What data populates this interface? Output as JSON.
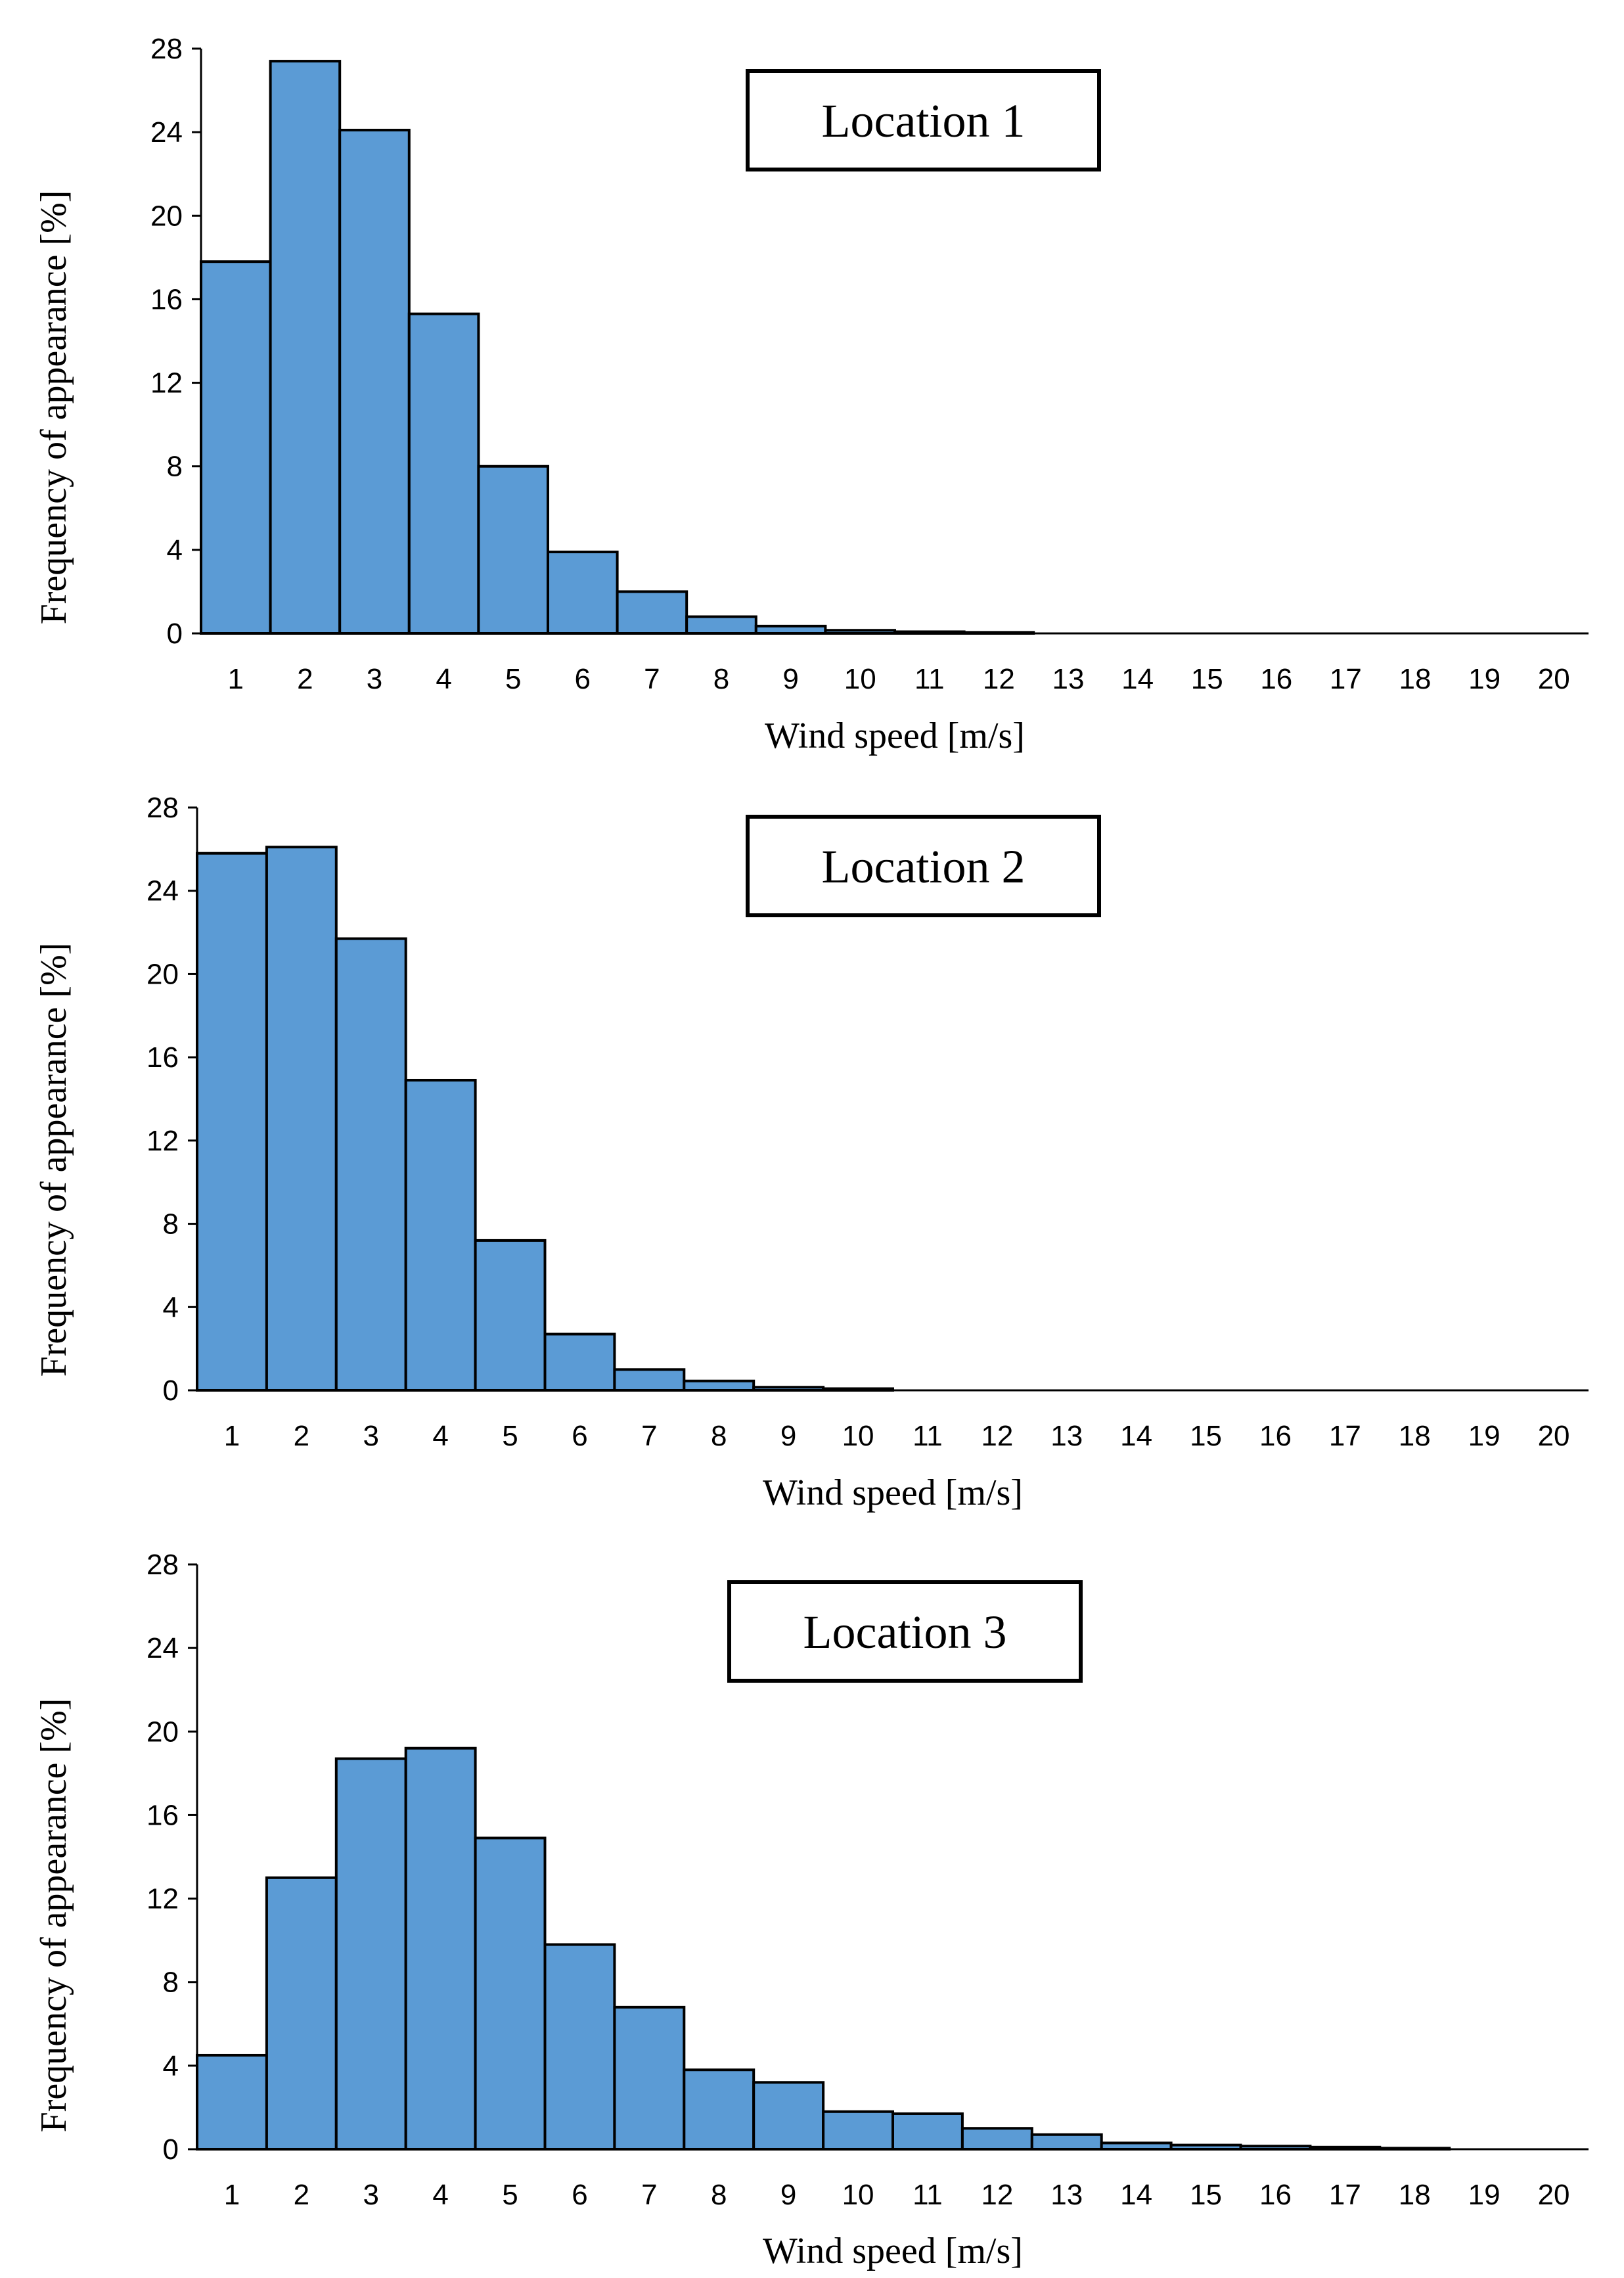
{
  "chart_data": [
    {
      "type": "bar",
      "title": "Location 1",
      "xlabel": "Wind speed [m/s]",
      "ylabel": "Frequency of appearance [%]",
      "ylim": [
        0,
        28
      ],
      "yticks": [
        "0",
        "4",
        "8",
        "12",
        "16",
        "20",
        "24",
        "28"
      ],
      "categories": [
        "1",
        "2",
        "3",
        "4",
        "5",
        "6",
        "7",
        "8",
        "9",
        "10",
        "11",
        "12",
        "13",
        "14",
        "15",
        "16",
        "17",
        "18",
        "19",
        "20"
      ],
      "values": [
        17.8,
        27.4,
        24.1,
        15.3,
        8.0,
        3.9,
        2.0,
        0.8,
        0.35,
        0.15,
        0.08,
        0.05,
        0,
        0,
        0,
        0,
        0,
        0,
        0,
        0
      ]
    },
    {
      "type": "bar",
      "title": "Location 2",
      "xlabel": "Wind speed [m/s]",
      "ylabel": "Frequency of appearance [%]",
      "ylim": [
        0,
        28
      ],
      "yticks": [
        "0",
        "4",
        "8",
        "12",
        "16",
        "20",
        "24",
        "28"
      ],
      "categories": [
        "1",
        "2",
        "3",
        "4",
        "5",
        "6",
        "7",
        "8",
        "9",
        "10",
        "11",
        "12",
        "13",
        "14",
        "15",
        "16",
        "17",
        "18",
        "19",
        "20"
      ],
      "values": [
        25.8,
        26.1,
        21.7,
        14.9,
        7.2,
        2.7,
        1.0,
        0.45,
        0.15,
        0.08,
        0,
        0,
        0,
        0,
        0,
        0,
        0,
        0,
        0,
        0
      ]
    },
    {
      "type": "bar",
      "title": "Location 3",
      "xlabel": "Wind speed [m/s]",
      "ylabel": "Frequency of appearance [%]",
      "ylim": [
        0,
        28
      ],
      "yticks": [
        "0",
        "4",
        "8",
        "12",
        "16",
        "20",
        "24",
        "28"
      ],
      "categories": [
        "1",
        "2",
        "3",
        "4",
        "5",
        "6",
        "7",
        "8",
        "9",
        "10",
        "11",
        "12",
        "13",
        "14",
        "15",
        "16",
        "17",
        "18",
        "19",
        "20"
      ],
      "values": [
        4.5,
        13.0,
        18.7,
        19.2,
        14.9,
        9.8,
        6.8,
        3.8,
        3.2,
        1.8,
        1.7,
        1.0,
        0.7,
        0.3,
        0.2,
        0.15,
        0.1,
        0.05,
        0,
        0
      ]
    }
  ]
}
